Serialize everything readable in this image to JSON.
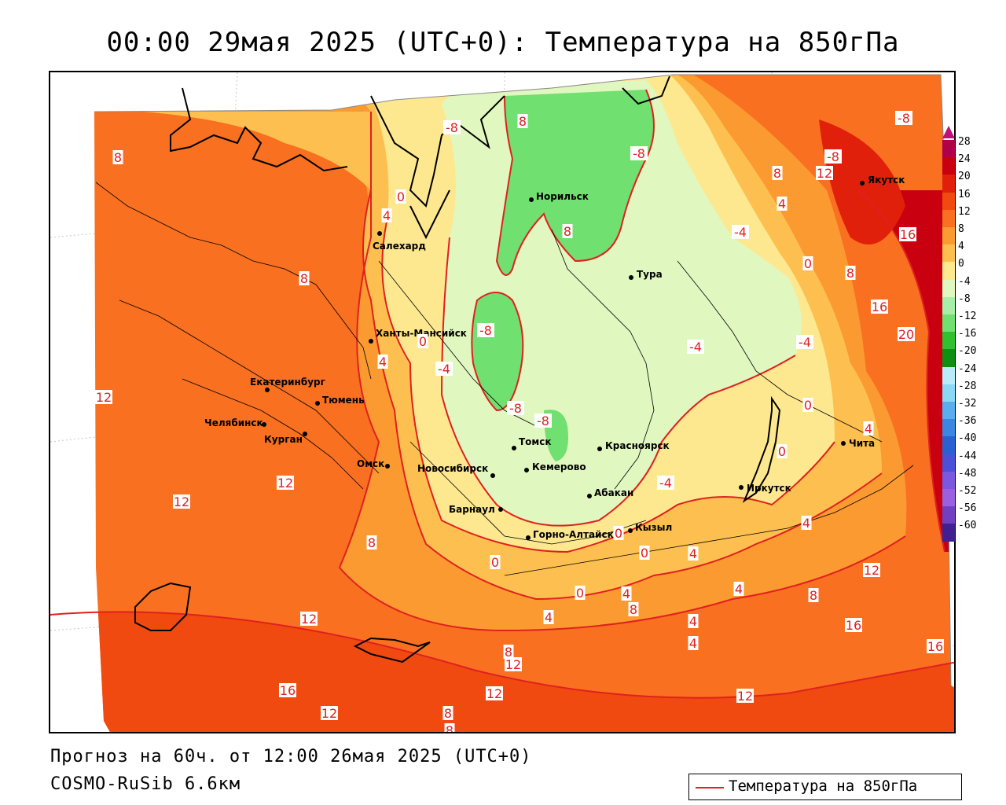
{
  "title": "00:00 29мая 2025 (UTC+0): Температура на 850гПа",
  "forecast_text": "Прогноз на 60ч. от 12:00 26мая 2025 (UTC+0)",
  "model_text": "COSMO-RuSib 6.6км",
  "legend": {
    "label": "Температура на 850гПа",
    "color": "#e02020"
  },
  "colorscale": {
    "labels": [
      "28",
      "24",
      "20",
      "16",
      "12",
      "8",
      "4",
      "0",
      "-4",
      "-8",
      "-12",
      "-16",
      "-20",
      "-24",
      "-28",
      "-32",
      "-36",
      "-40",
      "-44",
      "-48",
      "-52",
      "-56",
      "-60"
    ],
    "colors": [
      "#b0004a",
      "#c80010",
      "#e0200a",
      "#f04a10",
      "#f87020",
      "#fb9a30",
      "#fdc050",
      "#fde890",
      "#e0f7c0",
      "#a8eea8",
      "#70e070",
      "#30c030",
      "#109010",
      "#b8ecf8",
      "#8ad8f4",
      "#5aaef0",
      "#3a86e0",
      "#2a60d0",
      "#4a50d8",
      "#7a58e0",
      "#9a60e0",
      "#7040c0",
      "#402090"
    ]
  },
  "cities": [
    {
      "name": "Норильск"
    },
    {
      "name": "Салехард"
    },
    {
      "name": "Тура"
    },
    {
      "name": "Якутск"
    },
    {
      "name": "Ханты-Мансийск"
    },
    {
      "name": "Екатеринбург"
    },
    {
      "name": "Тюмень"
    },
    {
      "name": "Челябинск"
    },
    {
      "name": "Курган"
    },
    {
      "name": "Омск"
    },
    {
      "name": "Новосибирск"
    },
    {
      "name": "Томск"
    },
    {
      "name": "Кемерово"
    },
    {
      "name": "Красноярск"
    },
    {
      "name": "Барнаул"
    },
    {
      "name": "Абакан"
    },
    {
      "name": "Горно-Алтайск"
    },
    {
      "name": "Кызыл"
    },
    {
      "name": "Иркутск"
    },
    {
      "name": "Чита"
    }
  ],
  "contour_labels": [
    "8",
    "8",
    "-8",
    "-8",
    "8",
    "12",
    "-8",
    "-4",
    "4",
    "4",
    "0",
    "8",
    "4",
    "8",
    "-8",
    "0",
    "16",
    "8",
    "16",
    "-4",
    "-8",
    "-4",
    "0",
    "4",
    "20",
    "12",
    "-4",
    "-8",
    "-8",
    "0",
    "-4",
    "4",
    "12",
    "0",
    "12",
    "0",
    "0",
    "4",
    "0",
    "4",
    "8",
    "4",
    "0",
    "8",
    "4",
    "8",
    "4",
    "4",
    "8",
    "12",
    "8",
    "16",
    "16",
    "12",
    "12",
    "16",
    "12",
    "12",
    "12",
    "8"
  ]
}
